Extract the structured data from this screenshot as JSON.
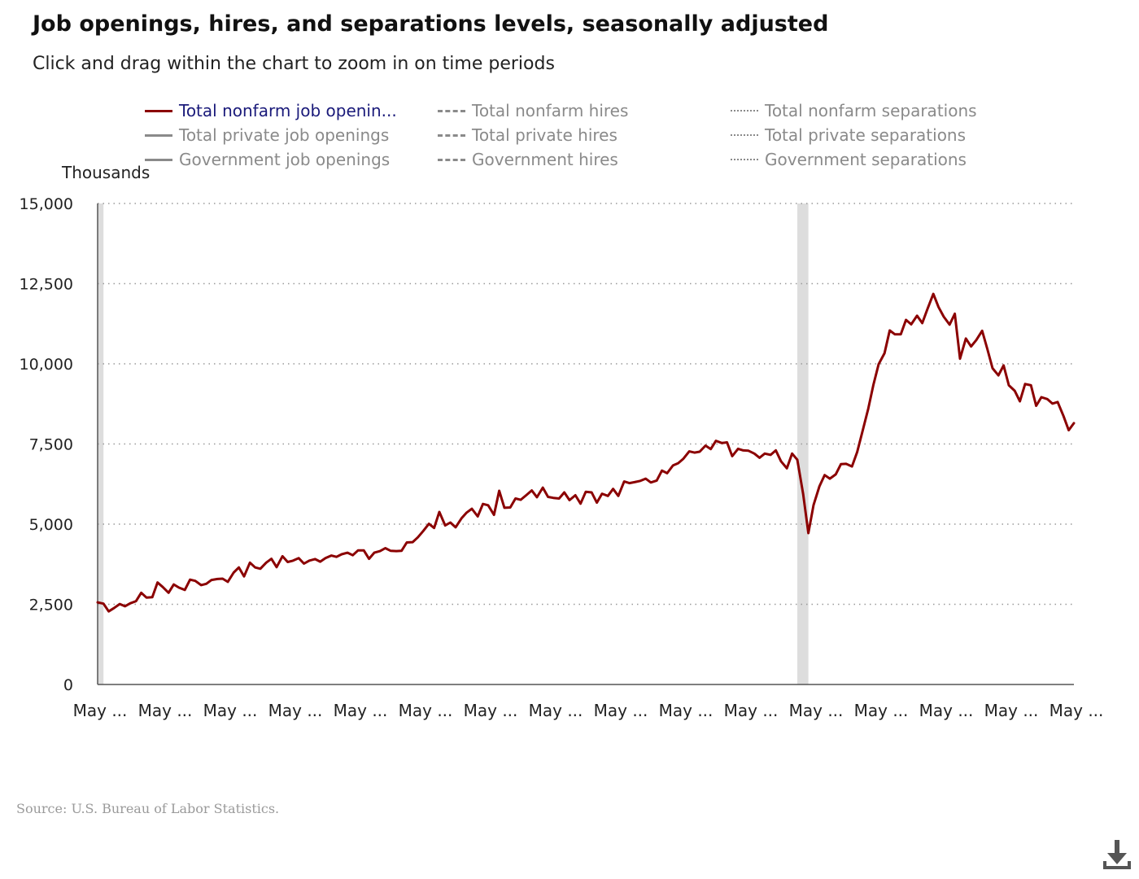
{
  "title": "Job openings, hires, and separations levels, seasonally adjusted",
  "subtitle": "Click and drag within the chart to zoom in on time periods",
  "source": "Source: U.S. Bureau of Labor Statistics.",
  "download_icon": "download-icon",
  "legend": [
    {
      "label": "Total nonfarm job openin...",
      "style": "solid",
      "active": true
    },
    {
      "label": "Total nonfarm hires",
      "style": "dashed",
      "active": false
    },
    {
      "label": "Total nonfarm separations",
      "style": "dotted",
      "active": false
    },
    {
      "label": "Total private job openings",
      "style": "solid",
      "active": false
    },
    {
      "label": "Total private hires",
      "style": "dashed",
      "active": false
    },
    {
      "label": "Total private separations",
      "style": "dotted",
      "active": false
    },
    {
      "label": "Government job openings",
      "style": "solid",
      "active": false
    },
    {
      "label": "Government hires",
      "style": "dashed",
      "active": false
    },
    {
      "label": "Government separations",
      "style": "dotted",
      "active": false
    }
  ],
  "chart_data": {
    "type": "line",
    "ylabel": "Thousands",
    "ylim": [
      0,
      15000
    ],
    "yticks": [
      0,
      2500,
      5000,
      7500,
      10000,
      12500,
      15000
    ],
    "ytick_labels": [
      "0",
      "2,500",
      "5,000",
      "7,500",
      "10,000",
      "12,500",
      "15,000"
    ],
    "x_tick_labels": [
      "May ...",
      "May ...",
      "May ...",
      "May ...",
      "May ...",
      "May ...",
      "May ...",
      "May ...",
      "May ...",
      "May ...",
      "May ...",
      "May ...",
      "May ...",
      "May ...",
      "May ...",
      "May ..."
    ],
    "xlim": [
      2009.33,
      2024.33
    ],
    "grid": "horizontal-dotted",
    "line_color": "#8b0000",
    "recession_color": "#dddddd",
    "recession_bands": [
      [
        2009.33,
        2009.42
      ],
      [
        2020.08,
        2020.25
      ]
    ],
    "series": [
      {
        "name": "Total nonfarm job openin...",
        "x": [
          2009.33,
          2009.42,
          2009.5,
          2009.58,
          2009.67,
          2009.75,
          2009.83,
          2009.92,
          2010.0,
          2010.08,
          2010.17,
          2010.25,
          2010.33,
          2010.42,
          2010.5,
          2010.58,
          2010.67,
          2010.75,
          2010.83,
          2010.92,
          2011.0,
          2011.08,
          2011.17,
          2011.25,
          2011.33,
          2011.42,
          2011.5,
          2011.58,
          2011.67,
          2011.75,
          2011.83,
          2011.92,
          2012.0,
          2012.08,
          2012.17,
          2012.25,
          2012.33,
          2012.42,
          2012.5,
          2012.58,
          2012.67,
          2012.75,
          2012.83,
          2012.92,
          2013.0,
          2013.08,
          2013.17,
          2013.25,
          2013.33,
          2013.42,
          2013.5,
          2013.58,
          2013.67,
          2013.75,
          2013.83,
          2013.92,
          2014.0,
          2014.08,
          2014.17,
          2014.25,
          2014.33,
          2014.42,
          2014.5,
          2014.58,
          2014.67,
          2014.75,
          2014.83,
          2014.92,
          2015.0,
          2015.08,
          2015.17,
          2015.25,
          2015.33,
          2015.42,
          2015.5,
          2015.58,
          2015.67,
          2015.75,
          2015.83,
          2015.92,
          2016.0,
          2016.08,
          2016.17,
          2016.25,
          2016.33,
          2016.42,
          2016.5,
          2016.58,
          2016.67,
          2016.75,
          2016.83,
          2016.92,
          2017.0,
          2017.08,
          2017.17,
          2017.25,
          2017.33,
          2017.42,
          2017.5,
          2017.58,
          2017.67,
          2017.75,
          2017.83,
          2017.92,
          2018.0,
          2018.08,
          2018.17,
          2018.25,
          2018.33,
          2018.42,
          2018.5,
          2018.58,
          2018.67,
          2018.75,
          2018.83,
          2018.92,
          2019.0,
          2019.08,
          2019.17,
          2019.25,
          2019.33,
          2019.42,
          2019.5,
          2019.58,
          2019.67,
          2019.75,
          2019.83,
          2019.92,
          2020.0,
          2020.08,
          2020.17,
          2020.25,
          2020.33,
          2020.42,
          2020.5,
          2020.58,
          2020.67,
          2020.75,
          2020.83,
          2020.92,
          2021.0,
          2021.08,
          2021.17,
          2021.25,
          2021.33,
          2021.42,
          2021.5,
          2021.58,
          2021.67,
          2021.75,
          2021.83,
          2021.92,
          2022.0,
          2022.08,
          2022.17,
          2022.25,
          2022.33,
          2022.42,
          2022.5,
          2022.58,
          2022.67,
          2022.75,
          2022.83,
          2022.92,
          2023.0,
          2023.08,
          2023.17,
          2023.25,
          2023.33,
          2023.42,
          2023.5,
          2023.58,
          2023.67,
          2023.75,
          2023.83,
          2023.92,
          2024.0,
          2024.08,
          2024.17,
          2024.25,
          2024.33
        ],
        "values": [
          2560,
          2520,
          2280,
          2380,
          2510,
          2440,
          2530,
          2600,
          2860,
          2710,
          2720,
          3180,
          3040,
          2860,
          3120,
          3020,
          2950,
          3270,
          3230,
          3100,
          3140,
          3260,
          3290,
          3300,
          3200,
          3490,
          3650,
          3370,
          3800,
          3650,
          3610,
          3800,
          3920,
          3660,
          4000,
          3820,
          3860,
          3940,
          3770,
          3860,
          3910,
          3830,
          3940,
          4020,
          3980,
          4060,
          4110,
          4030,
          4180,
          4180,
          3920,
          4110,
          4160,
          4250,
          4170,
          4160,
          4170,
          4430,
          4440,
          4590,
          4780,
          5010,
          4880,
          5380,
          4960,
          5050,
          4900,
          5180,
          5360,
          5480,
          5240,
          5630,
          5590,
          5290,
          6040,
          5510,
          5520,
          5800,
          5760,
          5910,
          6050,
          5840,
          6140,
          5850,
          5820,
          5800,
          5990,
          5750,
          5900,
          5640,
          6010,
          5990,
          5670,
          5950,
          5880,
          6100,
          5880,
          6330,
          6280,
          6310,
          6350,
          6420,
          6300,
          6360,
          6670,
          6590,
          6830,
          6900,
          7040,
          7270,
          7230,
          7260,
          7450,
          7340,
          7600,
          7530,
          7550,
          7120,
          7350,
          7300,
          7290,
          7200,
          7070,
          7200,
          7160,
          7300,
          6960,
          6740,
          7200,
          7010,
          5940,
          4720,
          5600,
          6180,
          6530,
          6420,
          6550,
          6870,
          6880,
          6800,
          7250,
          7880,
          8600,
          9350,
          9990,
          10330,
          11040,
          10920,
          10920,
          11370,
          11230,
          11500,
          11270,
          11710,
          12180,
          11770,
          11470,
          11220,
          11560,
          10160,
          10790,
          10540,
          10740,
          11030,
          10460,
          9860,
          9640,
          9950,
          9330,
          9160,
          8830,
          9370,
          9330,
          8690,
          8960,
          8900,
          8760,
          8810,
          8370,
          7930,
          8150
        ]
      }
    ]
  }
}
